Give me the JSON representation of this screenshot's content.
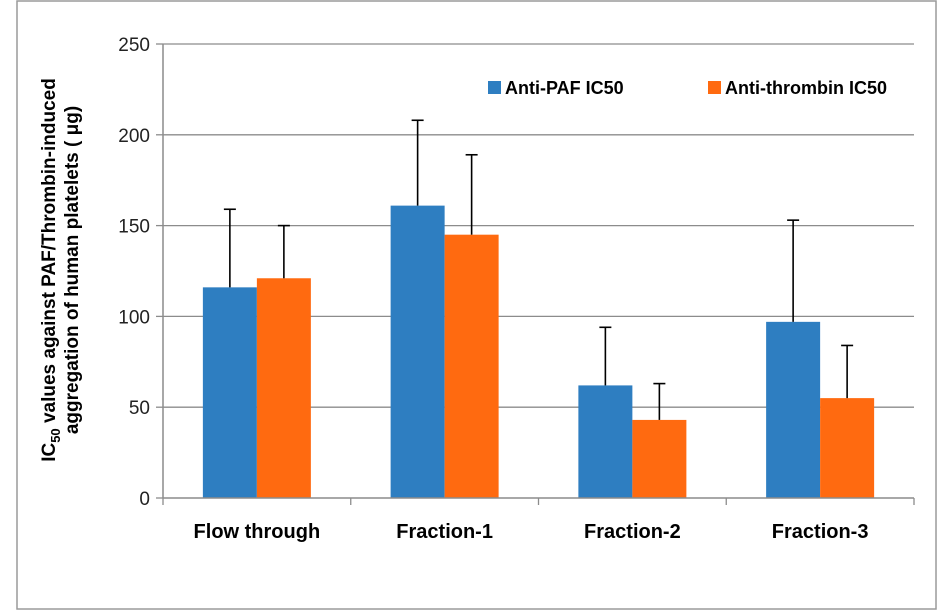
{
  "chart_data": {
    "type": "bar",
    "categories": [
      "Flow through",
      "Fraction-1",
      "Fraction-2",
      "Fraction-3"
    ],
    "series": [
      {
        "name": "Anti-PAF IC50",
        "color": "#2E7EC1",
        "values": [
          116,
          161,
          62,
          97
        ],
        "errors": [
          43,
          47,
          32,
          56
        ]
      },
      {
        "name": "Anti-thrombin IC50",
        "color": "#FF6A10",
        "values": [
          121,
          145,
          43,
          55
        ],
        "errors": [
          29,
          44,
          20,
          29
        ]
      }
    ],
    "ylabel_parts": {
      "line1_prefix": "IC",
      "line1_sub": "50",
      "line1_rest": " values against PAF/Thrombin-induced",
      "line2": "aggregation of human platelets ( μg)"
    },
    "ylim": [
      0,
      250
    ],
    "yticks": [
      0,
      50,
      100,
      150,
      200,
      250
    ],
    "grid": true,
    "legend_position": "top-right"
  }
}
